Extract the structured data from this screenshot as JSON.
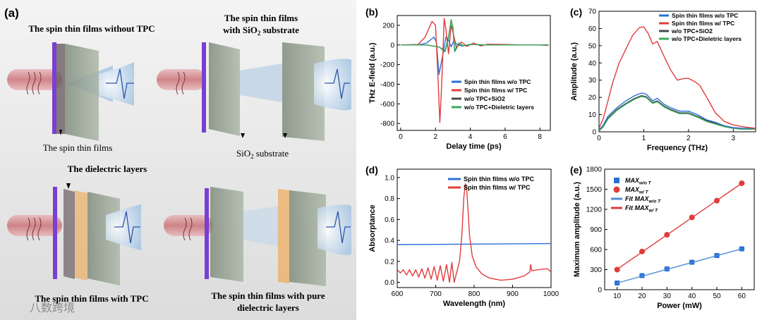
{
  "panel_a": {
    "label": "(a)",
    "titles": {
      "top_left": "The spin thin films without TPC",
      "top_right_1": "The spin thin films",
      "top_right_2": "with SiO",
      "top_right_2_sub": "2",
      "top_right_2_tail": " substrate",
      "bottom_left": "The spin thin films with TPC",
      "bottom_right_1": "The spin thin films with pure",
      "bottom_right_2": "dielectric layers"
    },
    "annotations": {
      "spin_films": "The spin thin films",
      "substrate": "SiO",
      "substrate_sub": "2",
      "substrate_tail": " substrate",
      "dielectric": "The dielectric layers"
    },
    "watermark": "八数跨境",
    "colors": {
      "film": "#7a3fd1",
      "substrate": "#8a9a86",
      "dielectric": "#f0a040",
      "beam": "#c9767a",
      "cone": "#a8c8e8"
    }
  },
  "chart_data": [
    {
      "id": "b",
      "label": "(b)",
      "type": "line",
      "xlabel": "Delay time (ps)",
      "ylabel": "THz E-field (a.u.)",
      "xlim": [
        -0.2,
        8.6
      ],
      "ylim": [
        -870,
        300
      ],
      "xticks": [
        0,
        2,
        4,
        6,
        8
      ],
      "yticks": [
        -800,
        -600,
        -400,
        -200,
        0,
        200
      ],
      "legend": "bottom-right",
      "series": [
        {
          "name": "Spin thin films w/o TPC",
          "color": "#2b6fd6",
          "x": [
            0,
            1,
            1.5,
            1.9,
            2.05,
            2.2,
            2.4,
            2.6,
            2.75,
            2.9,
            3.05,
            3.2,
            3.5,
            4,
            5,
            6,
            7,
            8,
            8.5
          ],
          "y": [
            0,
            0,
            20,
            80,
            30,
            -300,
            -120,
            80,
            50,
            -20,
            40,
            10,
            -10,
            5,
            0,
            0,
            0,
            0,
            0
          ]
        },
        {
          "name": "Spin thin films w/ TPC",
          "color": "#e03c3c",
          "x": [
            0,
            1,
            1.4,
            1.8,
            2.0,
            2.15,
            2.25,
            2.35,
            2.5,
            2.6,
            2.75,
            2.9,
            3.05,
            3.2,
            3.5,
            3.8,
            4.2,
            4.6,
            5,
            6,
            7,
            8,
            8.5
          ],
          "y": [
            0,
            5,
            80,
            240,
            200,
            -350,
            -790,
            -420,
            270,
            160,
            -90,
            200,
            100,
            -30,
            30,
            -15,
            20,
            -10,
            8,
            5,
            0,
            0,
            -5
          ]
        },
        {
          "name": "w/o TPC+SiO2",
          "color": "#4a4a4a",
          "x": [
            0,
            1.5,
            2.2,
            2.55,
            2.75,
            2.9,
            3.0,
            3.1,
            3.2,
            3.35,
            3.6,
            4,
            5,
            6,
            7,
            8,
            8.5
          ],
          "y": [
            0,
            0,
            -20,
            -60,
            80,
            250,
            180,
            -60,
            -30,
            20,
            -10,
            5,
            0,
            0,
            0,
            0,
            0
          ]
        },
        {
          "name": "w/o TPC+Dieletric layers",
          "color": "#3aa860",
          "x": [
            0,
            1.5,
            2.2,
            2.55,
            2.75,
            2.9,
            3.0,
            3.1,
            3.2,
            3.35,
            3.6,
            4,
            5,
            6,
            7,
            8,
            8.5
          ],
          "y": [
            0,
            0,
            -20,
            -70,
            70,
            260,
            170,
            -70,
            -40,
            20,
            -10,
            5,
            0,
            0,
            0,
            0,
            0
          ]
        }
      ]
    },
    {
      "id": "c",
      "label": "(c)",
      "type": "line",
      "xlabel": "Frequency (THz)",
      "ylabel": "Amplitude (a.u.)",
      "xlim": [
        0,
        3.5
      ],
      "ylim": [
        0,
        70
      ],
      "xticks": [
        0,
        1,
        2,
        3
      ],
      "yticks": [
        0,
        10,
        20,
        30,
        40,
        50,
        60,
        70
      ],
      "legend": "top-right",
      "series": [
        {
          "name": "Spin thin films w/o TPC",
          "color": "#2b6fd6",
          "x": [
            0,
            0.1,
            0.2,
            0.4,
            0.6,
            0.8,
            0.95,
            1.05,
            1.2,
            1.3,
            1.45,
            1.6,
            1.8,
            2.0,
            2.2,
            2.4,
            2.6,
            2.8,
            3.0,
            3.2,
            3.5
          ],
          "y": [
            1,
            4,
            9,
            14,
            18,
            21,
            22.5,
            22,
            18,
            19.5,
            16,
            14,
            12,
            12,
            10,
            7,
            5.5,
            3.5,
            2.5,
            2,
            2
          ]
        },
        {
          "name": "Spin thin films w/ TPC",
          "color": "#e03c3c",
          "x": [
            0,
            0.1,
            0.2,
            0.3,
            0.45,
            0.6,
            0.75,
            0.9,
            1.0,
            1.1,
            1.2,
            1.3,
            1.45,
            1.6,
            1.75,
            1.9,
            2.0,
            2.15,
            2.25,
            2.45,
            2.6,
            2.8,
            3.0,
            3.2,
            3.5
          ],
          "y": [
            2,
            8,
            18,
            28,
            40,
            48,
            56,
            60.5,
            61,
            57,
            51,
            52.5,
            44,
            36,
            30,
            31,
            31,
            29,
            27,
            18,
            11,
            6,
            4,
            3,
            2
          ]
        },
        {
          "name": "w/o TPC+SiO2",
          "color": "#4a4a4a",
          "x": [
            0,
            0.1,
            0.2,
            0.4,
            0.6,
            0.8,
            0.95,
            1.05,
            1.2,
            1.3,
            1.45,
            1.6,
            1.8,
            2.0,
            2.2,
            2.4,
            2.6,
            2.8,
            3.0,
            3.2,
            3.5
          ],
          "y": [
            0.5,
            3,
            8,
            13,
            16.5,
            19.5,
            21,
            20.5,
            17,
            18,
            15,
            13,
            11,
            11,
            9,
            6.5,
            5,
            3,
            2,
            1.5,
            1.5
          ]
        },
        {
          "name": "w/o TPC+Dieletric layers",
          "color": "#3aa860",
          "x": [
            0,
            0.1,
            0.2,
            0.4,
            0.6,
            0.8,
            0.95,
            1.05,
            1.2,
            1.3,
            1.45,
            1.6,
            1.8,
            2.0,
            2.2,
            2.4,
            2.6,
            2.8,
            3.0,
            3.2,
            3.5
          ],
          "y": [
            0.5,
            3,
            7.5,
            12.5,
            16,
            19,
            20.5,
            20,
            16.5,
            17.5,
            14.5,
            12.5,
            10.5,
            10.5,
            8.5,
            6,
            4.5,
            3,
            2,
            1.5,
            1.5
          ]
        }
      ]
    },
    {
      "id": "d",
      "label": "(d)",
      "type": "line",
      "xlabel": "Wavelength (nm)",
      "ylabel": "Absorptance",
      "xlim": [
        600,
        1000
      ],
      "ylim": [
        -0.05,
        1.08
      ],
      "xticks": [
        600,
        700,
        800,
        900,
        1000
      ],
      "yticks": [
        0.0,
        0.2,
        0.4,
        0.6,
        0.8,
        1.0
      ],
      "legend": "top-right",
      "series": [
        {
          "name": "Spin thin films w/o TPC",
          "color": "#2b6fd6",
          "x": [
            600,
            700,
            800,
            900,
            1000
          ],
          "y": [
            0.36,
            0.362,
            0.365,
            0.368,
            0.37
          ]
        },
        {
          "name": "Spin thin films w/ TPC",
          "color": "#e03c3c",
          "x": [
            600,
            608,
            616,
            624,
            632,
            640,
            648,
            656,
            664,
            672,
            680,
            688,
            696,
            704,
            712,
            720,
            728,
            736,
            742,
            748,
            755,
            762,
            768,
            773,
            777,
            780,
            784,
            788,
            795,
            805,
            820,
            840,
            870,
            900,
            930,
            945,
            947,
            950,
            965,
            990,
            1000
          ],
          "y": [
            0.12,
            0.09,
            0.12,
            0.07,
            0.12,
            0.06,
            0.12,
            0.05,
            0.13,
            0.04,
            0.14,
            0.03,
            0.15,
            0.02,
            0.16,
            0.01,
            0.17,
            0.0,
            0.19,
            0.0,
            0.1,
            0.2,
            0.45,
            0.8,
            0.94,
            0.92,
            0.7,
            0.45,
            0.25,
            0.15,
            0.08,
            0.04,
            0.02,
            0.03,
            0.06,
            0.1,
            0.17,
            0.11,
            0.12,
            0.13,
            0.1
          ]
        }
      ]
    },
    {
      "id": "e",
      "label": "(e)",
      "type": "scatter",
      "xlabel": "Power (mW)",
      "ylabel": "Maximum amplitude (a.u.)",
      "xlim": [
        5,
        65
      ],
      "ylim": [
        0,
        1800
      ],
      "xticks": [
        10,
        20,
        30,
        40,
        50,
        60
      ],
      "yticks": [
        0,
        300,
        600,
        900,
        1200,
        1500,
        1800
      ],
      "legend": "top-left",
      "series": [
        {
          "name": "MAX",
          "sub": "w/o T",
          "marker": "square",
          "color": "#2b6fd6",
          "x": [
            10,
            20,
            30,
            40,
            50,
            60
          ],
          "y": [
            100,
            210,
            310,
            410,
            510,
            610
          ]
        },
        {
          "name": "MAX",
          "sub": "w/ T",
          "marker": "circle",
          "color": "#e03c3c",
          "x": [
            10,
            20,
            30,
            40,
            50,
            60
          ],
          "y": [
            300,
            570,
            820,
            1080,
            1330,
            1590
          ]
        },
        {
          "name": "Fit MAX",
          "sub": "w/o T",
          "marker": "line",
          "color": "#4a8fd6",
          "x": [
            10,
            60
          ],
          "y": [
            100,
            610
          ]
        },
        {
          "name": "Fit MAX",
          "sub": "w/ T",
          "marker": "line",
          "color": "#e03c3c",
          "x": [
            10,
            60
          ],
          "y": [
            305,
            1590
          ]
        }
      ]
    }
  ]
}
